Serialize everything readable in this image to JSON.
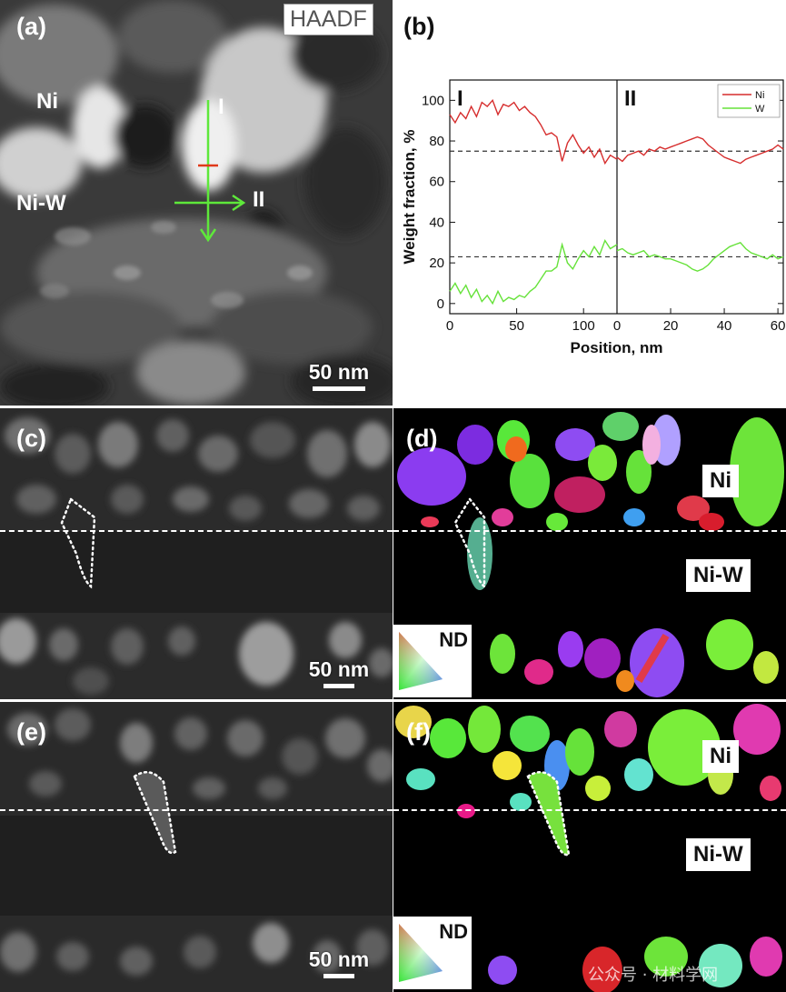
{
  "panels": {
    "a": {
      "label": "(a)",
      "mode_label": "HAADF",
      "ni_label": "Ni",
      "niw_label": "Ni-W",
      "line1_label": "I",
      "line2_label": "II",
      "scale_label": "50 nm"
    },
    "b": {
      "label": "(b)"
    },
    "c": {
      "label": "(c)",
      "scale_label": "50 nm"
    },
    "d": {
      "label": "(d)",
      "ni_label": "Ni",
      "niw_label": "Ni-W",
      "nd_label": "ND"
    },
    "e": {
      "label": "(e)",
      "scale_label": "50 nm"
    },
    "f": {
      "label": "(f)",
      "ni_label": "Ni",
      "niw_label": "Ni-W",
      "nd_label": "ND"
    }
  },
  "watermark": "公众号 · 材料学网",
  "colors": {
    "ni": "#d62d2d",
    "w": "#66e23a",
    "arrow": "#5ee83a",
    "marker": "#e03a1a"
  },
  "chart_data": {
    "type": "line",
    "ylabel": "Weight fraction, %",
    "xlabel": "Position, nm",
    "ylim": [
      -5,
      110
    ],
    "y_ticks": [
      0,
      20,
      40,
      60,
      80,
      100
    ],
    "reference_lines": [
      75,
      23
    ],
    "legend": {
      "placement": "top-right",
      "entries": [
        "Ni",
        "W"
      ]
    },
    "subplots": [
      {
        "label": "I",
        "xlim": [
          0,
          125
        ],
        "x_ticks": [
          0,
          50,
          100
        ],
        "series": [
          {
            "name": "Ni",
            "x": [
              0,
              4,
              8,
              12,
              16,
              20,
              24,
              28,
              32,
              36,
              40,
              44,
              48,
              52,
              56,
              60,
              64,
              68,
              72,
              76,
              80,
              84,
              88,
              92,
              96,
              100,
              104,
              108,
              112,
              116,
              120,
              125
            ],
            "y": [
              93,
              89,
              94,
              91,
              97,
              92,
              99,
              97,
              100,
              93,
              98,
              97,
              99,
              95,
              97,
              94,
              92,
              88,
              83,
              84,
              82,
              70,
              79,
              83,
              78,
              74,
              77,
              72,
              76,
              69,
              73,
              71
            ]
          },
          {
            "name": "W",
            "x": [
              0,
              4,
              8,
              12,
              16,
              20,
              24,
              28,
              32,
              36,
              40,
              44,
              48,
              52,
              56,
              60,
              64,
              68,
              72,
              76,
              80,
              84,
              88,
              92,
              96,
              100,
              104,
              108,
              112,
              116,
              120,
              125
            ],
            "y": [
              6,
              10,
              5,
              9,
              3,
              7,
              1,
              4,
              0,
              6,
              1,
              3,
              2,
              4,
              3,
              6,
              8,
              12,
              16,
              16,
              18,
              29,
              20,
              17,
              22,
              26,
              23,
              28,
              24,
              31,
              27,
              29
            ]
          }
        ]
      },
      {
        "label": "II",
        "xlim": [
          0,
          62
        ],
        "x_ticks": [
          0,
          20,
          40,
          60
        ],
        "series": [
          {
            "name": "Ni",
            "x": [
              0,
              2,
              4,
              6,
              8,
              10,
              12,
              14,
              16,
              18,
              20,
              22,
              24,
              26,
              28,
              30,
              32,
              34,
              36,
              38,
              40,
              42,
              44,
              46,
              48,
              50,
              52,
              54,
              56,
              58,
              60,
              62
            ],
            "y": [
              72,
              70,
              73,
              74,
              75,
              73,
              76,
              75,
              77,
              76,
              77,
              78,
              79,
              80,
              81,
              82,
              81,
              78,
              76,
              74,
              72,
              71,
              70,
              69,
              71,
              72,
              73,
              74,
              75,
              76,
              78,
              76
            ]
          },
          {
            "name": "W",
            "x": [
              0,
              2,
              4,
              6,
              8,
              10,
              12,
              14,
              16,
              18,
              20,
              22,
              24,
              26,
              28,
              30,
              32,
              34,
              36,
              38,
              40,
              42,
              44,
              46,
              48,
              50,
              52,
              54,
              56,
              58,
              60,
              62
            ],
            "y": [
              26,
              27,
              25,
              24,
              25,
              26,
              23,
              24,
              23,
              22,
              22,
              21,
              20,
              19,
              17,
              16,
              17,
              19,
              22,
              24,
              26,
              28,
              29,
              30,
              27,
              25,
              24,
              23,
              22,
              24,
              22,
              23
            ]
          }
        ]
      }
    ]
  }
}
